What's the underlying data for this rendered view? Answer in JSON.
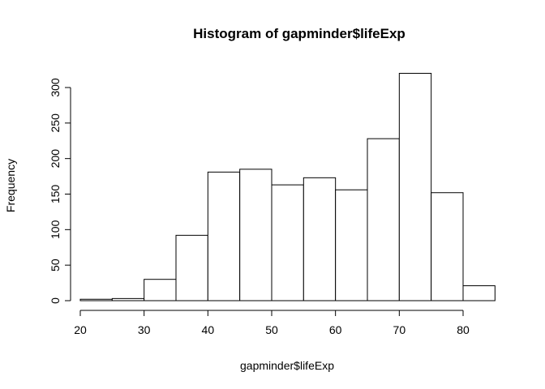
{
  "chart_data": {
    "type": "bar",
    "title": "Histogram of gapminder$lifeExp",
    "xlabel": "gapminder$lifeExp",
    "ylabel": "Frequency",
    "bins": [
      {
        "from": 20,
        "to": 25,
        "count": 2
      },
      {
        "from": 25,
        "to": 30,
        "count": 3
      },
      {
        "from": 30,
        "to": 35,
        "count": 30
      },
      {
        "from": 35,
        "to": 40,
        "count": 92
      },
      {
        "from": 40,
        "to": 45,
        "count": 181
      },
      {
        "from": 45,
        "to": 50,
        "count": 185
      },
      {
        "from": 50,
        "to": 55,
        "count": 163
      },
      {
        "from": 55,
        "to": 60,
        "count": 173
      },
      {
        "from": 60,
        "to": 65,
        "count": 156
      },
      {
        "from": 65,
        "to": 70,
        "count": 228
      },
      {
        "from": 70,
        "to": 75,
        "count": 320
      },
      {
        "from": 75,
        "to": 80,
        "count": 152
      },
      {
        "from": 80,
        "to": 85,
        "count": 21
      }
    ],
    "xlim": [
      20,
      85
    ],
    "ylim": [
      0,
      320
    ],
    "x_ticks": [
      20,
      30,
      40,
      50,
      60,
      70,
      80
    ],
    "y_ticks": [
      0,
      50,
      100,
      150,
      200,
      250,
      300
    ],
    "grid": false,
    "legend": "none",
    "bar_fill": "#ffffff",
    "bar_stroke": "#000000"
  }
}
